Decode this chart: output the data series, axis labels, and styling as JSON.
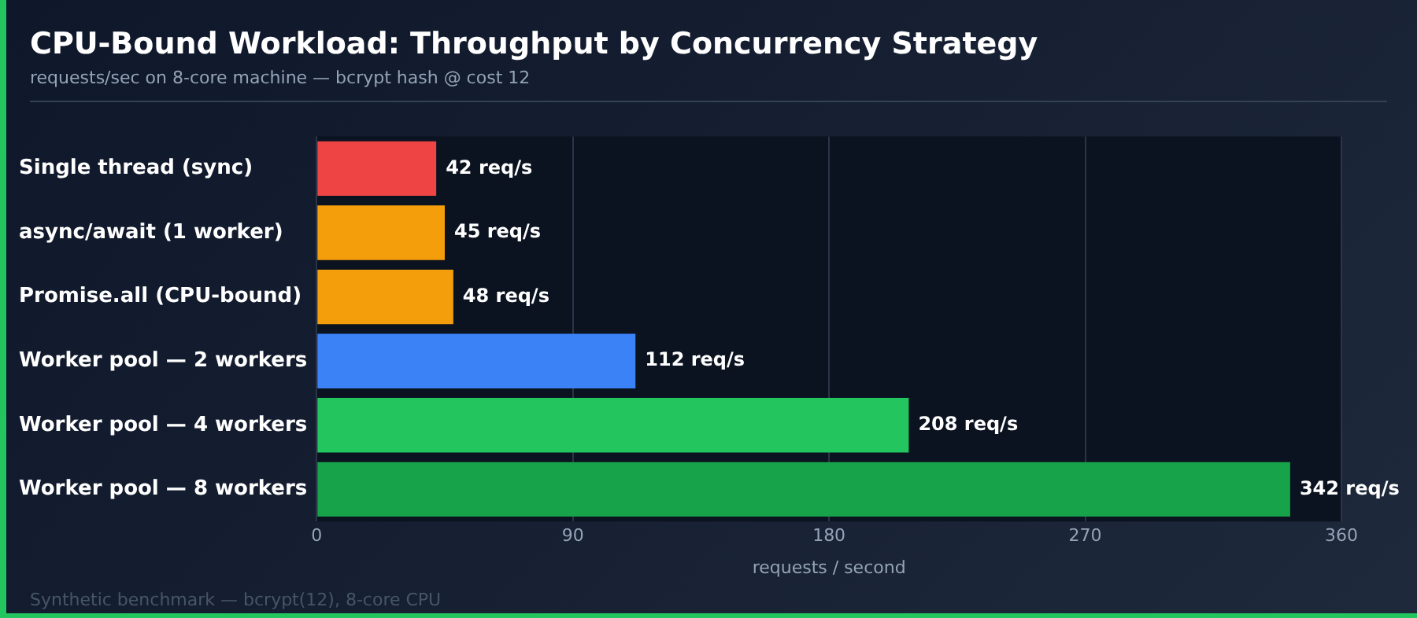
{
  "chart_data": {
    "type": "bar",
    "orientation": "horizontal",
    "title": "CPU-Bound Workload: Throughput by Concurrency Strategy",
    "subtitle": "requests/sec on 8-core machine — bcrypt hash @ cost 12",
    "xlabel": "requests / second",
    "categories": [
      "Single thread (sync)",
      "async/await (1 worker)",
      "Promise.all (CPU-bound)",
      "Worker pool — 2 workers",
      "Worker pool — 4 workers",
      "Worker pool — 8 workers"
    ],
    "values": [
      42,
      45,
      48,
      112,
      208,
      342
    ],
    "colors": [
      "#ef4444",
      "#f59e0b",
      "#f59e0b",
      "#3b82f6",
      "#22c55e",
      "#16a34a"
    ],
    "value_labels": [
      "42 req/s",
      "45 req/s",
      "48 req/s",
      "112 req/s",
      "208 req/s",
      "342 req/s"
    ],
    "xlim": [
      0,
      360
    ],
    "xticks": [
      0,
      90,
      180,
      270,
      360
    ],
    "grid": "x",
    "legend": false,
    "annotations": [
      "Synthetic benchmark — bcrypt(12), 8-core CPU"
    ]
  }
}
